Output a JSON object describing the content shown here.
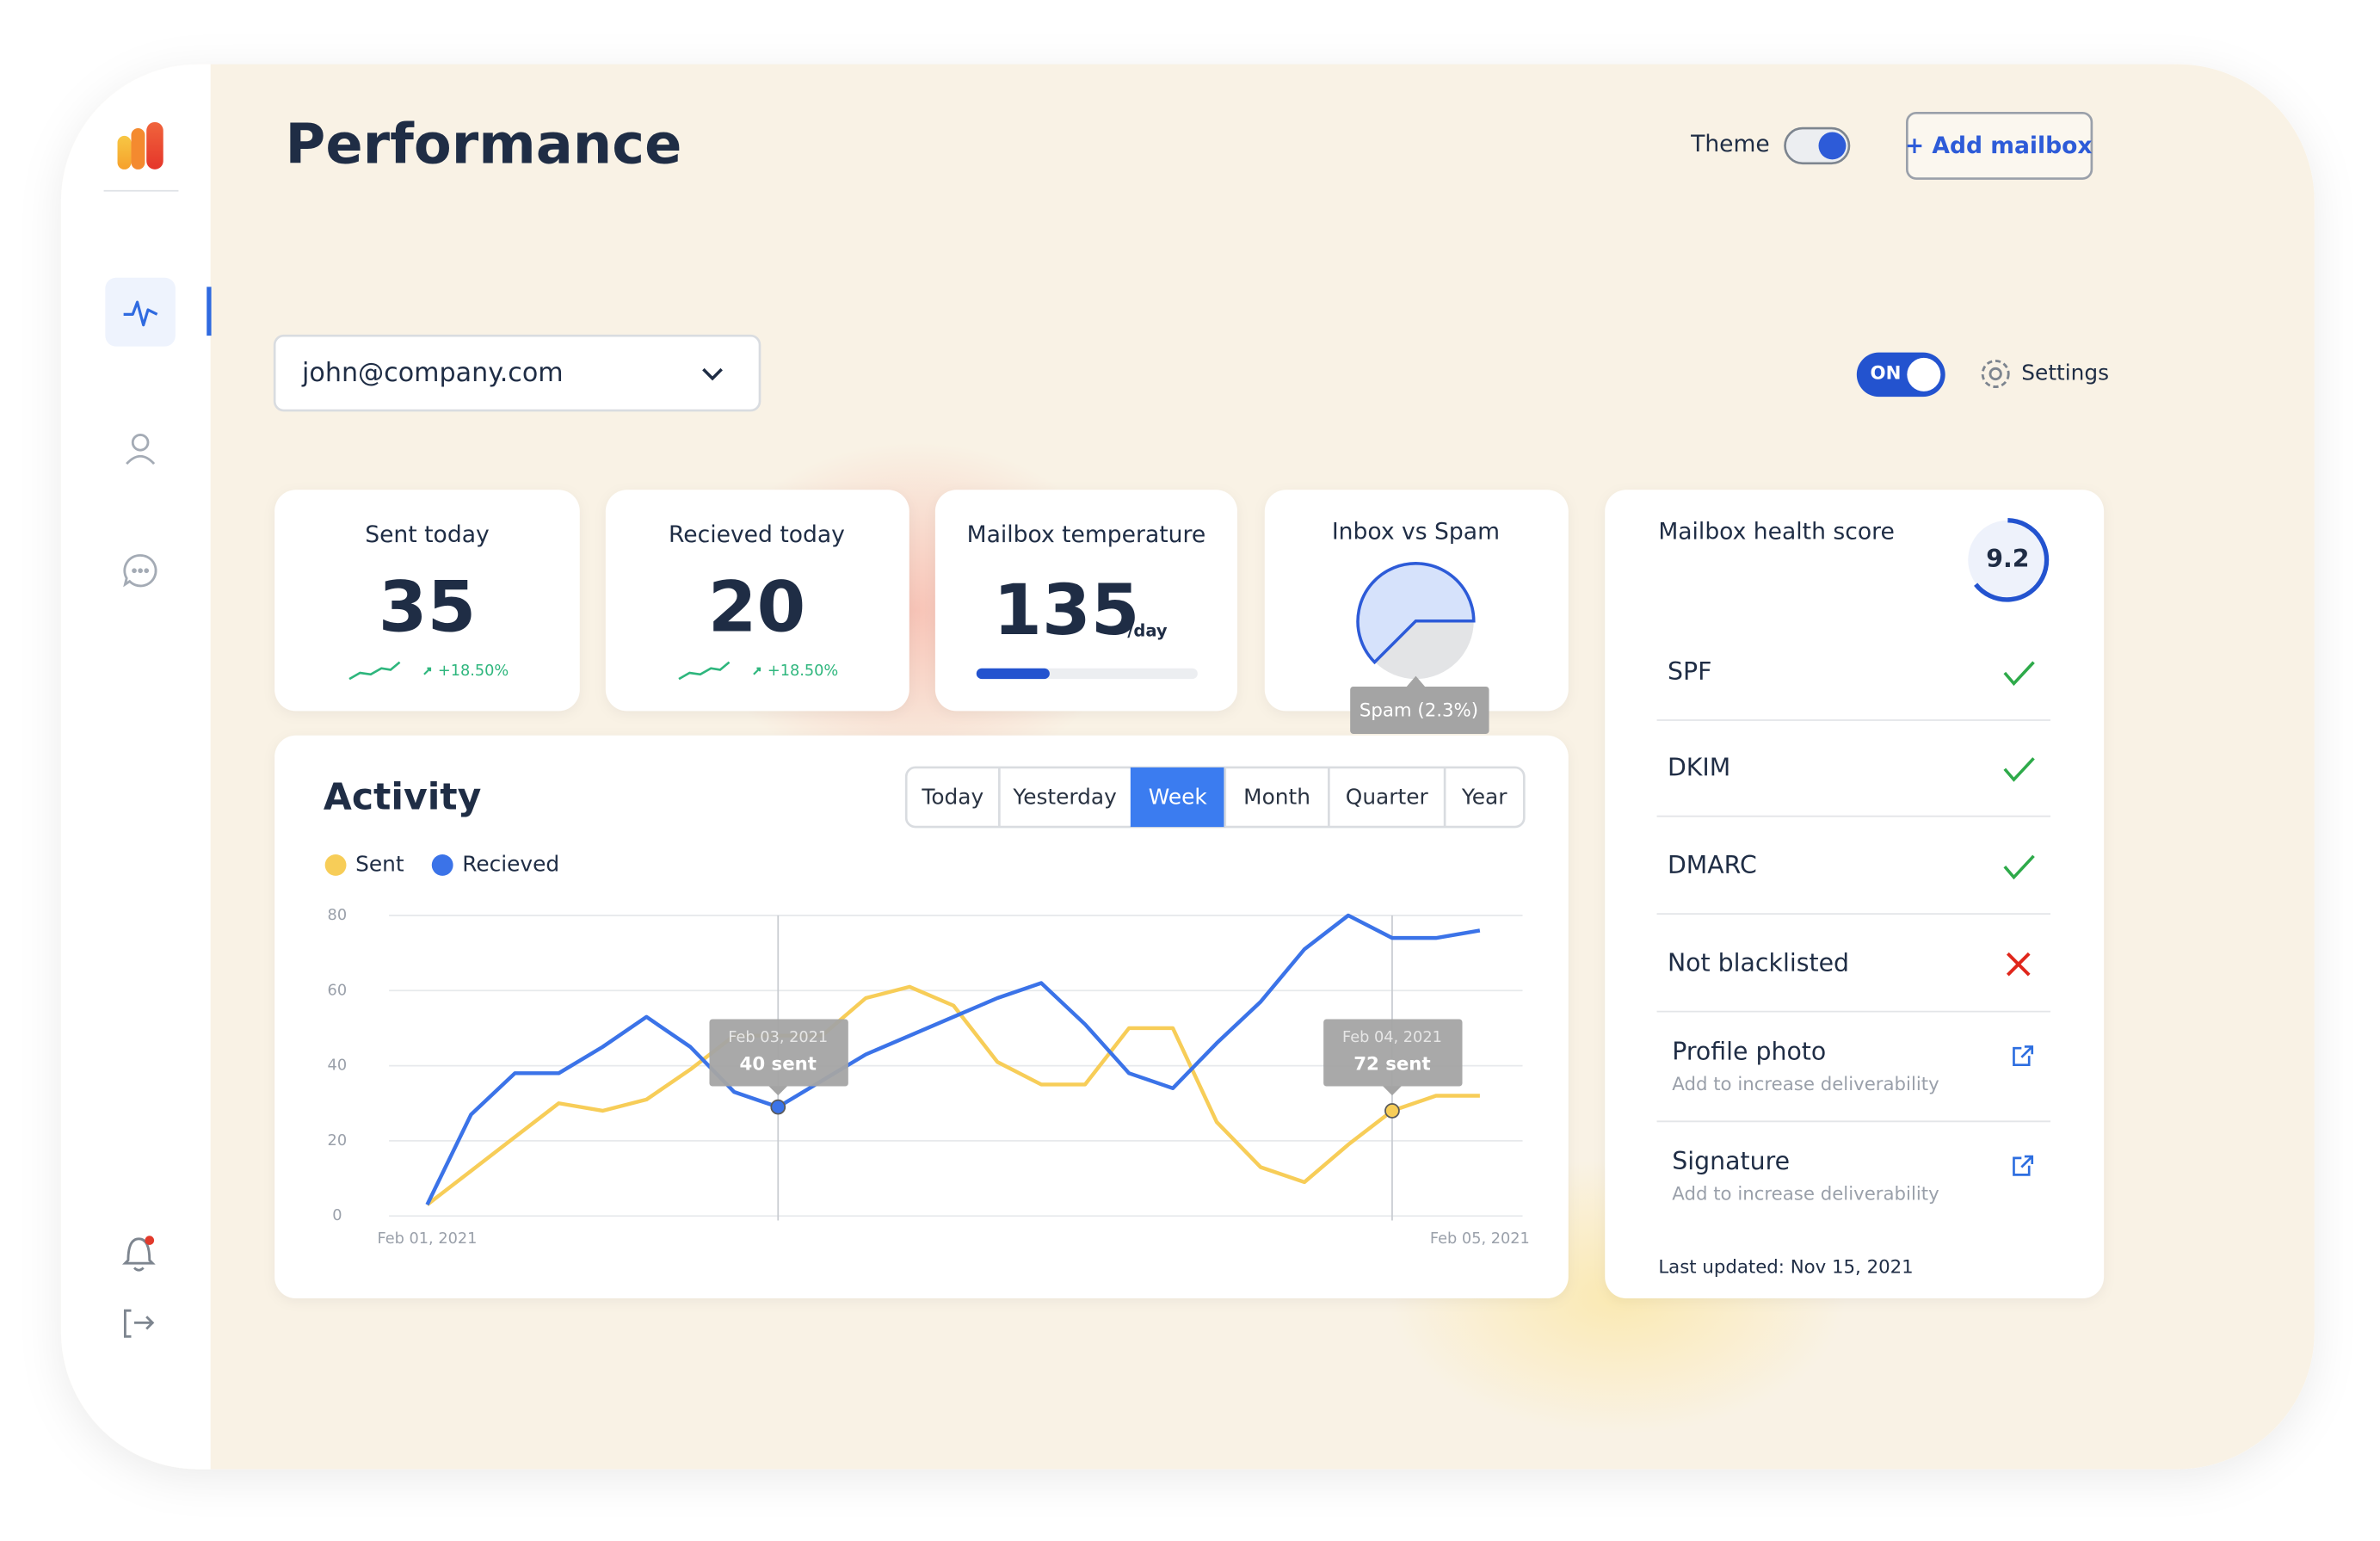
{
  "header": {
    "title": "Performance",
    "theme_label": "Theme",
    "add_button": "+ Add mailbox"
  },
  "mailbox_select": "john@company.com",
  "toggle": {
    "label": "ON"
  },
  "settings": "Settings",
  "stats": [
    {
      "label": "Sent today",
      "value": 35,
      "change": "+18.50%"
    },
    {
      "label": "Recieved today",
      "value": 20,
      "change": "+18.50%"
    }
  ],
  "temperature": {
    "label": "Mailbox temperature",
    "value": 135,
    "unit": "/day"
  },
  "inbox_spam": {
    "label": "Inbox vs Spam",
    "tooltip": "Spam (2.3%)"
  },
  "health": {
    "title": "Mailbox health score",
    "score": 9.2,
    "checks": [
      {
        "name": "SPF",
        "status": "pass"
      },
      {
        "name": "DKIM",
        "status": "pass"
      },
      {
        "name": "DMARC",
        "status": "pass"
      },
      {
        "name": "Not blacklisted",
        "status": "fail"
      }
    ],
    "items": [
      {
        "title": "Profile photo",
        "subtitle": "Add to increase deliverability"
      },
      {
        "title": "Signature",
        "subtitle": "Add to increase deliverability"
      }
    ],
    "updated": "Last updated: Nov 15, 2021"
  },
  "activity": {
    "type": "line",
    "title": "Activity",
    "ranges": [
      "Today",
      "Yesterday",
      "Week",
      "Month",
      "Quarter",
      "Year"
    ],
    "selected": "Week",
    "categories": [
      "Feb 01, 2021",
      null,
      null,
      null,
      null,
      null,
      null,
      null,
      null,
      null,
      null,
      null,
      null,
      null,
      null,
      null,
      null,
      null,
      null,
      null,
      null,
      null,
      null,
      null,
      "Feb 05, 2021"
    ],
    "series": [
      {
        "name": "Sent",
        "color": "#f7cd58",
        "values": [
          3,
          12,
          21,
          30,
          28,
          31,
          39,
          48,
          48,
          48,
          58,
          61,
          56,
          41,
          35,
          35,
          50,
          50,
          25,
          13,
          9,
          19,
          28,
          32,
          32
        ]
      },
      {
        "name": "Recieved",
        "color": "#3b73e8",
        "values": [
          3,
          27,
          38,
          38,
          45,
          53,
          45,
          33,
          29,
          36,
          43,
          48,
          53,
          58,
          62,
          51,
          38,
          34,
          46,
          57,
          71,
          80,
          74,
          74,
          76
        ]
      }
    ],
    "ylim": [
      0,
      80
    ],
    "yticks": [
      0,
      20,
      40,
      60,
      80
    ],
    "grid": true,
    "tooltips": [
      {
        "date": "Feb 03, 2021",
        "text": "40 sent"
      },
      {
        "date": "Feb 04, 2021",
        "text": "72 sent"
      }
    ]
  }
}
